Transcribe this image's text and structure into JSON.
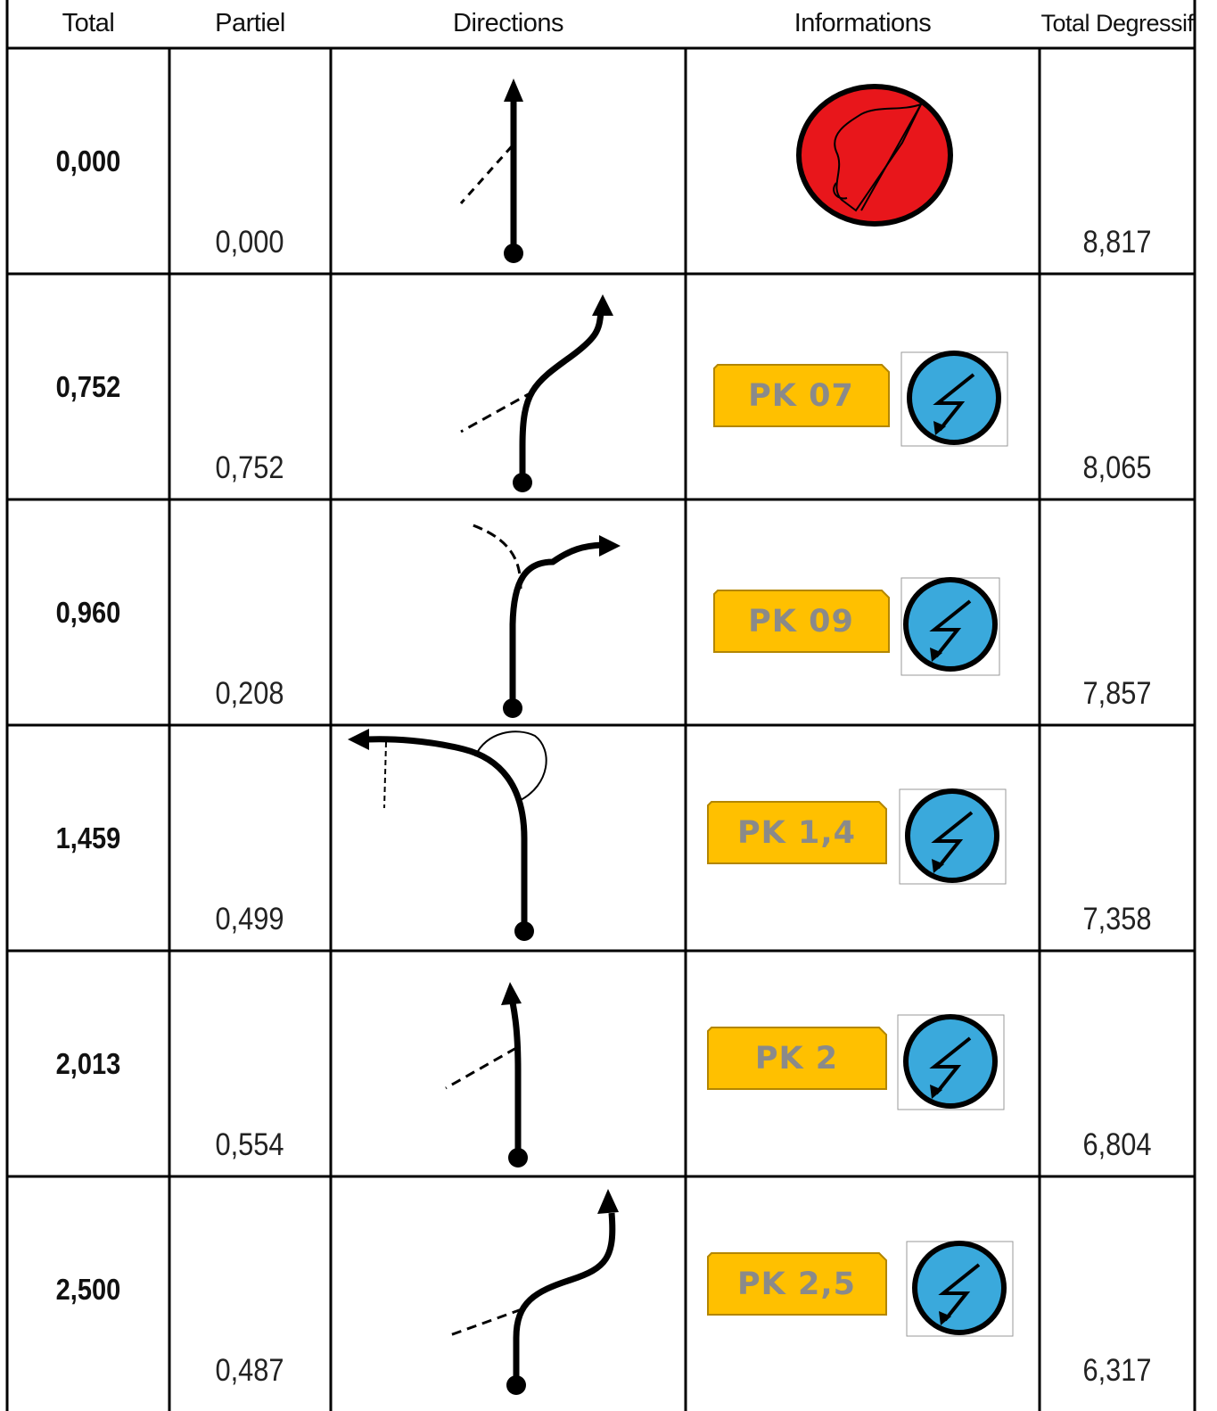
{
  "headers": {
    "total": "Total",
    "partiel": "Partiel",
    "directions": "Directions",
    "informations": "Informations",
    "total_degressif": "Total Degressif"
  },
  "rows": [
    {
      "total": "0,000",
      "partiel": "0,000",
      "total_degressif": "8,817",
      "info": "stop-flag-icon"
    },
    {
      "total": "0,752",
      "partiel": "0,752",
      "total_degressif": "8,065",
      "info_label": "PK 07",
      "info": "radar-warning-icon"
    },
    {
      "total": "0,960",
      "partiel": "0,208",
      "total_degressif": "7,857",
      "info_label": "PK 09",
      "info": "radar-warning-icon"
    },
    {
      "total": "1,459",
      "partiel": "0,499",
      "total_degressif": "7,358",
      "info_label": "PK 1,4",
      "info": "radar-warning-icon"
    },
    {
      "total": "2,013",
      "partiel": "0,554",
      "total_degressif": "6,804",
      "info_label": "PK 2",
      "info": "radar-warning-icon"
    },
    {
      "total": "2,500",
      "partiel": "0,487",
      "total_degressif": "6,317",
      "info_label": "PK 2,5",
      "info": "radar-warning-icon"
    }
  ],
  "colors": {
    "grid": "#000000",
    "stop_red": "#e8161b",
    "plate_yellow": "#ffc000",
    "plate_text": "#8a8a8a",
    "radar_blue": "#3aa9dc"
  }
}
